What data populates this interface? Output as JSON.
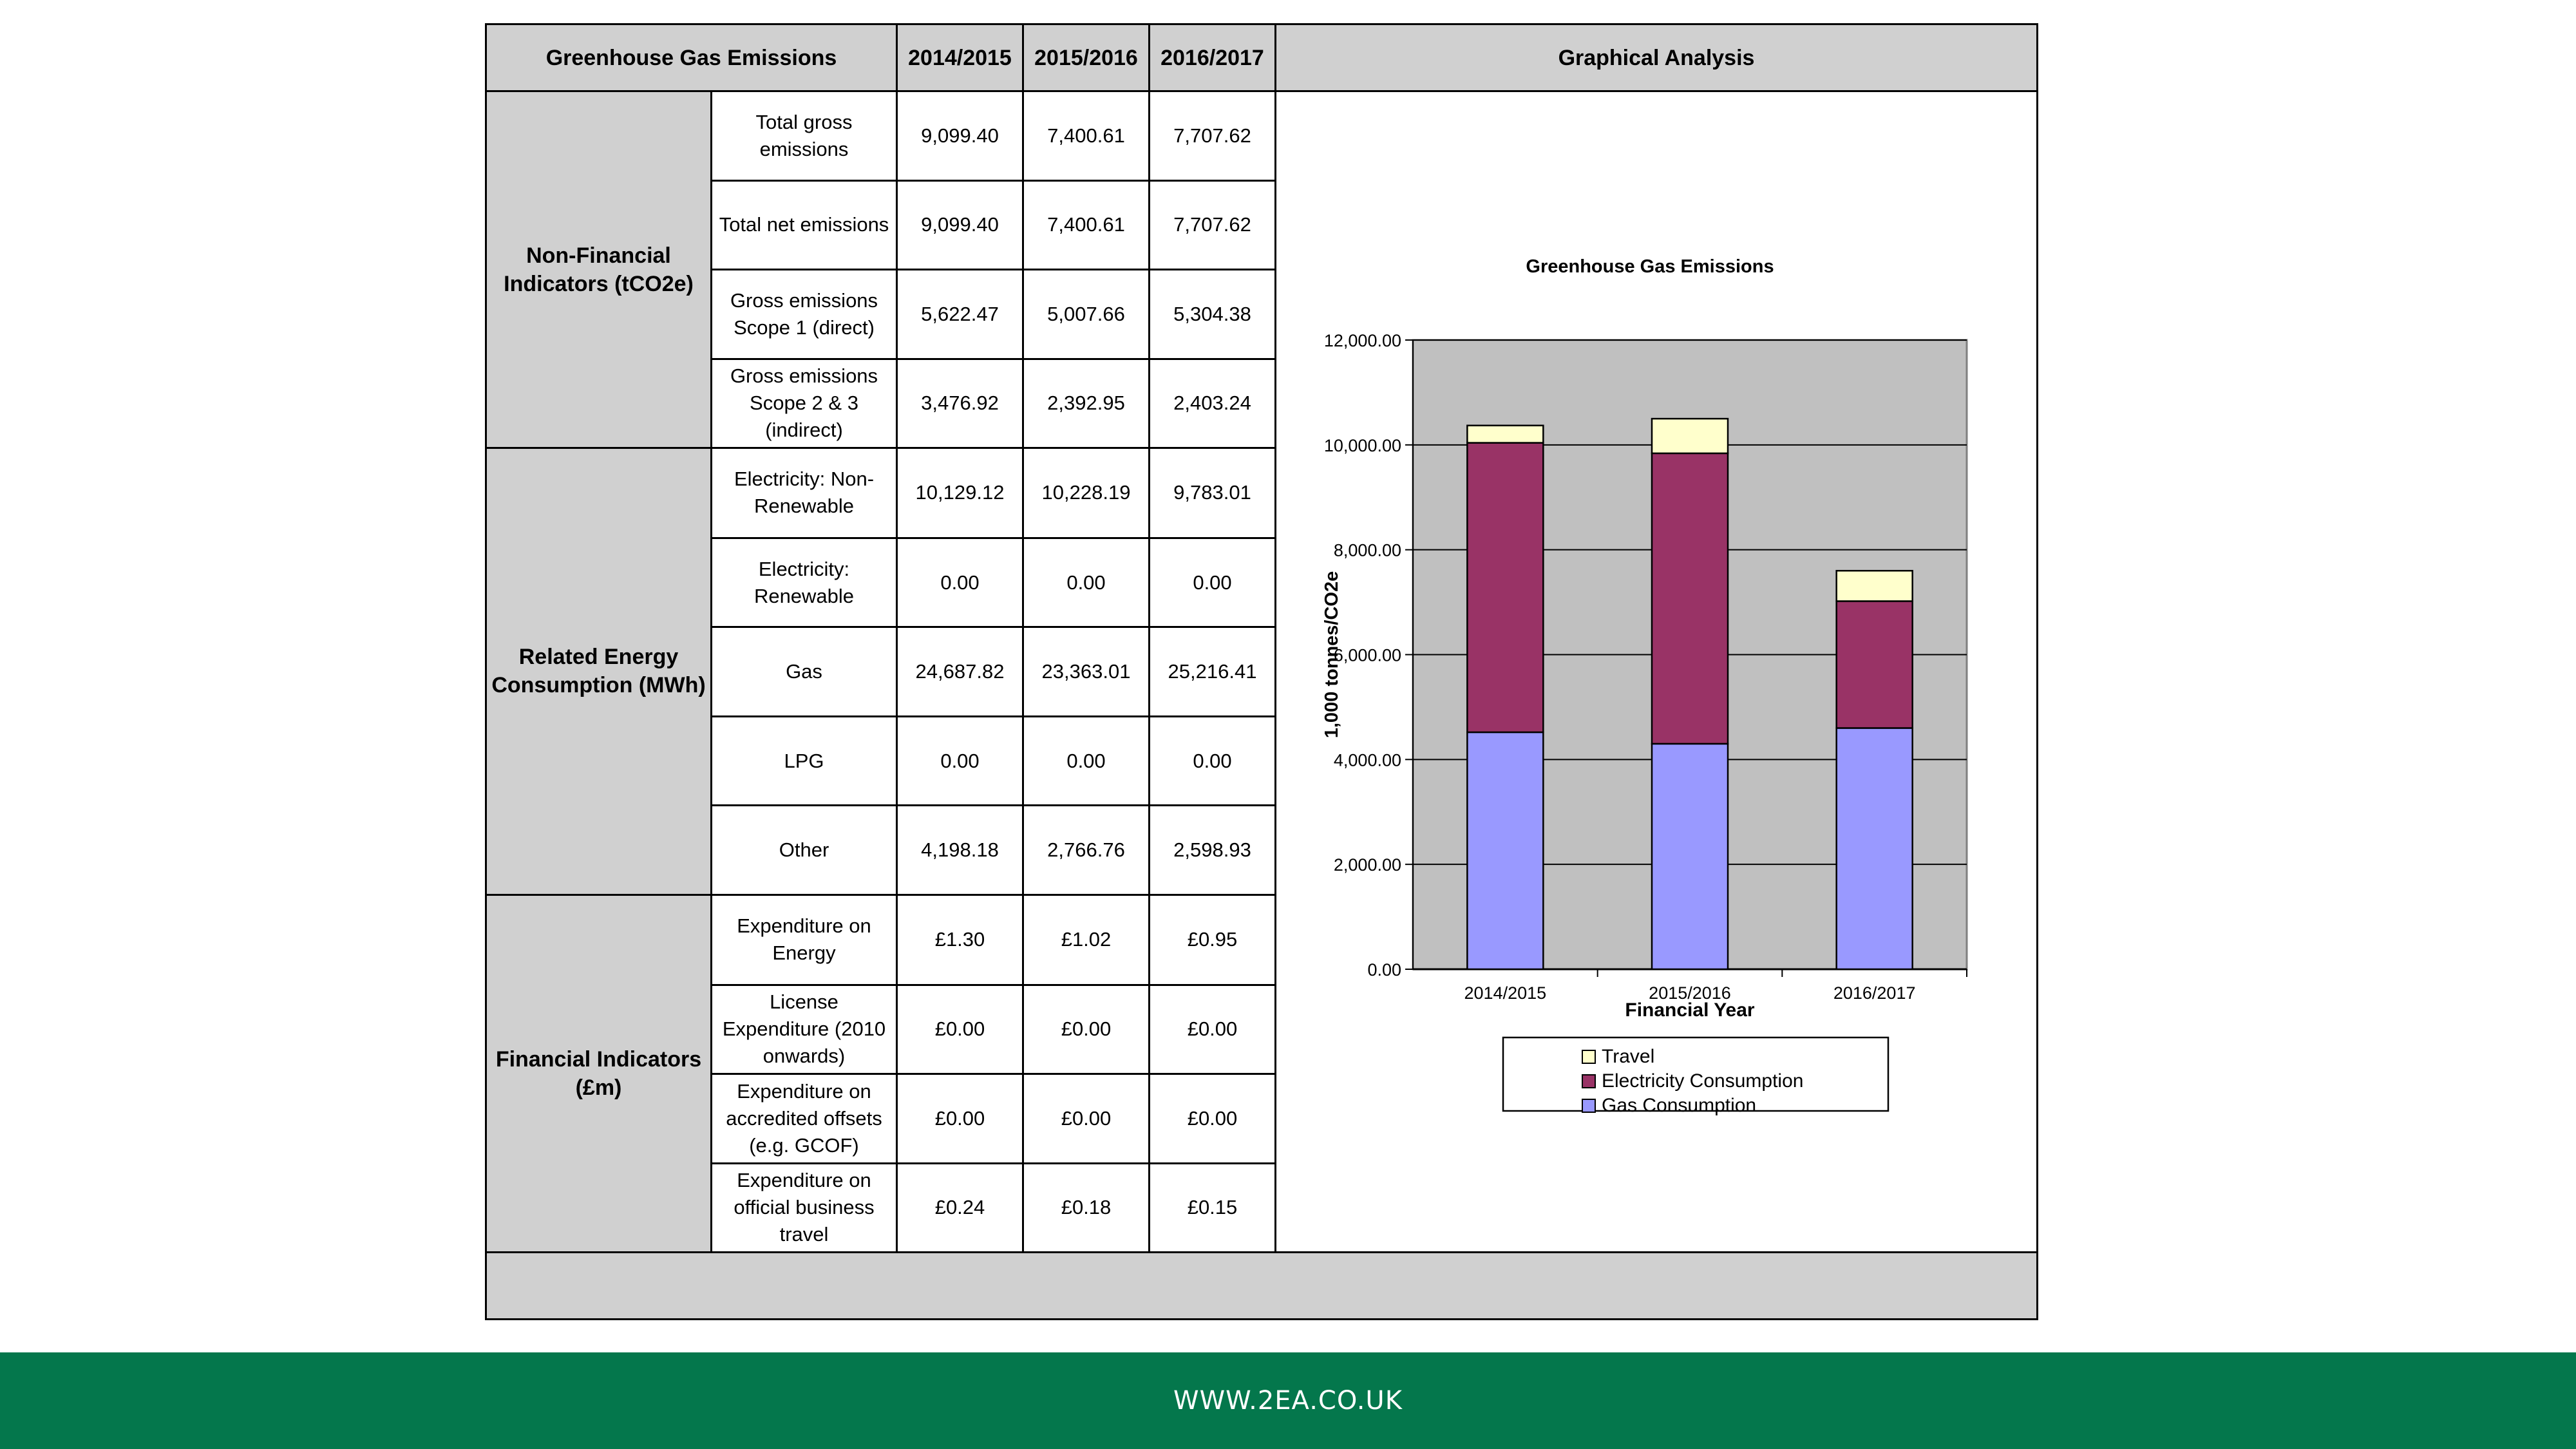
{
  "table": {
    "header": {
      "title": "Greenhouse Gas Emissions",
      "years": [
        "2014/2015",
        "2015/2016",
        "2016/2017"
      ],
      "analysis": "Graphical Analysis"
    },
    "groups": [
      {
        "label": "Non-Financial Indicators (tCO2e)",
        "rows": [
          {
            "label": "Total gross emissions",
            "values": [
              "9,099.40",
              "7,400.61",
              "7,707.62"
            ]
          },
          {
            "label": "Total net emissions",
            "values": [
              "9,099.40",
              "7,400.61",
              "7,707.62"
            ]
          },
          {
            "label": "Gross emissions Scope 1 (direct)",
            "values": [
              "5,622.47",
              "5,007.66",
              "5,304.38"
            ]
          },
          {
            "label": "Gross emissions Scope 2 & 3 (indirect)",
            "values": [
              "3,476.92",
              "2,392.95",
              "2,403.24"
            ]
          }
        ]
      },
      {
        "label": "Related Energy Consumption (MWh)",
        "rows": [
          {
            "label": "Electricity: Non-Renewable",
            "values": [
              "10,129.12",
              "10,228.19",
              "9,783.01"
            ]
          },
          {
            "label": "Electricity: Renewable",
            "values": [
              "0.00",
              "0.00",
              "0.00"
            ]
          },
          {
            "label": "Gas",
            "values": [
              "24,687.82",
              "23,363.01",
              "25,216.41"
            ]
          },
          {
            "label": "LPG",
            "values": [
              "0.00",
              "0.00",
              "0.00"
            ]
          },
          {
            "label": "Other",
            "values": [
              "4,198.18",
              "2,766.76",
              "2,598.93"
            ]
          }
        ]
      },
      {
        "label": "Financial Indicators (£m)",
        "rows": [
          {
            "label": "Expenditure on Energy",
            "values": [
              "£1.30",
              "£1.02",
              "£0.95"
            ]
          },
          {
            "label": "License Expenditure (2010 onwards)",
            "values": [
              "£0.00",
              "£0.00",
              "£0.00"
            ]
          },
          {
            "label": "Expenditure on accredited offsets (e.g. GCOF)",
            "values": [
              "£0.00",
              "£0.00",
              "£0.00"
            ]
          },
          {
            "label": "Expenditure on official business travel",
            "values": [
              "£0.24",
              "£0.18",
              "£0.15"
            ]
          }
        ]
      }
    ]
  },
  "chart_data": {
    "type": "bar",
    "stacked": true,
    "title": "Greenhouse Gas Emissions",
    "xlabel": "Financial Year",
    "ylabel": "1,000 tonnes/CO2e",
    "categories": [
      "2014/2015",
      "2015/2016",
      "2016/2017"
    ],
    "series": [
      {
        "name": "Gas Consumption",
        "values": [
          4520,
          4300,
          4600
        ],
        "color": "#9999ff"
      },
      {
        "name": "Electricity Consumption",
        "values": [
          5520,
          5540,
          2420
        ],
        "color": "#993366"
      },
      {
        "name": "Travel",
        "values": [
          330,
          660,
          580
        ],
        "color": "#ffffcc"
      }
    ],
    "ylim": [
      0,
      12000
    ],
    "yticks": [
      "0.00",
      "2,000.00",
      "4,000.00",
      "6,000.00",
      "8,000.00",
      "10,000.00",
      "12,000.00"
    ],
    "ytick_values": [
      0,
      2000,
      4000,
      6000,
      8000,
      10000,
      12000
    ],
    "grid": true,
    "legend_position": "bottom",
    "plot_background": "#c0c0c0"
  },
  "footer": {
    "url": "WWW.2EA.CO.UK"
  },
  "colors": {
    "header_gray": "#d0d0d0",
    "footer_green": "#04774c"
  }
}
